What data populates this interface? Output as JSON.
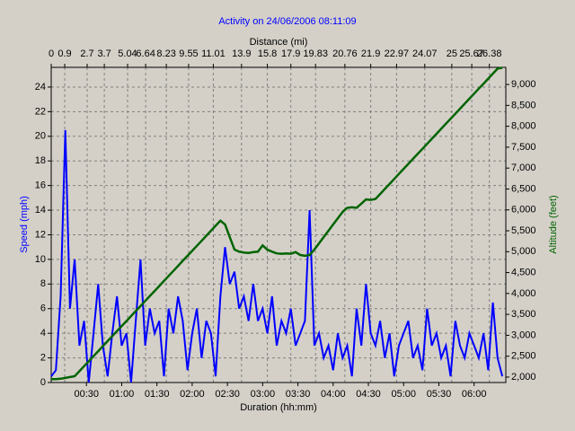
{
  "chart_data": {
    "type": "line",
    "title": "Activity on 24/06/2006 08:11:09",
    "xlabel": "Duration (hh:mm)",
    "x2label": "Distance (mi)",
    "ylabel": "Speed (mph)",
    "y2label": "Altitude (feet)",
    "grid": true,
    "xlim": [
      0,
      387
    ],
    "xticks": [
      {
        "value": 30,
        "label": "00:30"
      },
      {
        "value": 60,
        "label": "01:00"
      },
      {
        "value": 90,
        "label": "01:30"
      },
      {
        "value": 120,
        "label": "02:00"
      },
      {
        "value": 150,
        "label": "02:30"
      },
      {
        "value": 180,
        "label": "03:00"
      },
      {
        "value": 210,
        "label": "03:30"
      },
      {
        "value": 240,
        "label": "04:00"
      },
      {
        "value": 270,
        "label": "04:30"
      },
      {
        "value": 300,
        "label": "05:00"
      },
      {
        "value": 330,
        "label": "05:30"
      },
      {
        "value": 360,
        "label": "06:00"
      }
    ],
    "x2ticks": [
      {
        "value": 0,
        "label": "0"
      },
      {
        "value": 11.5,
        "label": "0.9"
      },
      {
        "value": 30.6,
        "label": "2.7"
      },
      {
        "value": 45.2,
        "label": "3.7"
      },
      {
        "value": 65,
        "label": "5.04"
      },
      {
        "value": 80.4,
        "label": "6.64"
      },
      {
        "value": 98,
        "label": "8.23"
      },
      {
        "value": 117,
        "label": "9.55"
      },
      {
        "value": 138,
        "label": "11.01"
      },
      {
        "value": 162,
        "label": "13.9"
      },
      {
        "value": 184,
        "label": "15.8"
      },
      {
        "value": 204,
        "label": "17.9"
      },
      {
        "value": 225,
        "label": "19.83"
      },
      {
        "value": 250,
        "label": "20.76"
      },
      {
        "value": 272,
        "label": "21.9"
      },
      {
        "value": 294,
        "label": "22.97"
      },
      {
        "value": 318,
        "label": "24.07"
      },
      {
        "value": 341,
        "label": "25"
      },
      {
        "value": 358,
        "label": "25.67"
      },
      {
        "value": 373,
        "label": "26.38"
      }
    ],
    "ylim": [
      0,
      25.6
    ],
    "yticks": [
      0,
      2,
      4,
      6,
      8,
      10,
      12,
      14,
      16,
      18,
      20,
      22,
      24
    ],
    "y2lim": [
      1870,
      9410
    ],
    "y2ticks": [
      {
        "value": 2000,
        "label": "2,000"
      },
      {
        "value": 2500,
        "label": "2,500"
      },
      {
        "value": 3000,
        "label": "3,000"
      },
      {
        "value": 3500,
        "label": "3,500"
      },
      {
        "value": 4000,
        "label": "4,000"
      },
      {
        "value": 4500,
        "label": "4,500"
      },
      {
        "value": 5000,
        "label": "5,000"
      },
      {
        "value": 5500,
        "label": "5,500"
      },
      {
        "value": 6000,
        "label": "6,000"
      },
      {
        "value": 6500,
        "label": "6,500"
      },
      {
        "value": 7000,
        "label": "7,000"
      },
      {
        "value": 7500,
        "label": "7,500"
      },
      {
        "value": 8000,
        "label": "8,000"
      },
      {
        "value": 8500,
        "label": "8,500"
      },
      {
        "value": 9000,
        "label": "9,000"
      }
    ],
    "x": [
      0,
      4,
      8,
      12,
      16,
      20,
      24,
      28,
      32,
      36,
      40,
      44,
      48,
      52,
      56,
      60,
      64,
      68,
      72,
      76,
      80,
      84,
      88,
      92,
      96,
      100,
      104,
      108,
      112,
      116,
      120,
      124,
      128,
      132,
      136,
      140,
      144,
      148,
      152,
      156,
      160,
      164,
      168,
      172,
      176,
      180,
      184,
      188,
      192,
      196,
      200,
      204,
      208,
      212,
      216,
      220,
      224,
      228,
      232,
      236,
      240,
      244,
      248,
      252,
      256,
      260,
      264,
      268,
      272,
      276,
      280,
      284,
      288,
      292,
      296,
      300,
      304,
      308,
      312,
      316,
      320,
      324,
      328,
      332,
      336,
      340,
      344,
      348,
      352,
      356,
      360,
      364,
      368,
      372,
      376,
      380,
      384
    ],
    "series": [
      {
        "name": "Speed",
        "color": "#0000ff",
        "axis": "y",
        "values": [
          0.5,
          1,
          7,
          20.5,
          6,
          10,
          3,
          5,
          0,
          4,
          8,
          3,
          0.5,
          4,
          7,
          3,
          4,
          0,
          5,
          10,
          3,
          6,
          4,
          5,
          0.5,
          6,
          4,
          7,
          5,
          1,
          4,
          6,
          2,
          5,
          4,
          0.5,
          7,
          11,
          8,
          9,
          6,
          7,
          5,
          8,
          5,
          6,
          4,
          7,
          3,
          5,
          4,
          6,
          3,
          4,
          5,
          14,
          3,
          4,
          2,
          3,
          1,
          4,
          2,
          3,
          0.5,
          6,
          3,
          8,
          4,
          3,
          5,
          2,
          4,
          0.5,
          3,
          4,
          5,
          2,
          3,
          1,
          6,
          3,
          4,
          2,
          3,
          0.5,
          5,
          3,
          2,
          4,
          3,
          2,
          4,
          1,
          6.5,
          2,
          0.5
        ]
      },
      {
        "name": "Altitude",
        "color": "#006400",
        "axis": "y2",
        "values": [
          1950,
          1950,
          1960,
          1980,
          2000,
          2020,
          2140,
          2260,
          2380,
          2500,
          2620,
          2740,
          2860,
          2980,
          3100,
          3220,
          3340,
          3460,
          3580,
          3700,
          3820,
          3940,
          4060,
          4180,
          4300,
          4420,
          4540,
          4660,
          4780,
          4900,
          5020,
          5140,
          5260,
          5380,
          5500,
          5620,
          5740,
          5650,
          5350,
          5050,
          5000,
          4980,
          4970,
          4990,
          5000,
          5150,
          5050,
          5000,
          4960,
          4950,
          4960,
          4950,
          4990,
          4920,
          4900,
          4920,
          5050,
          5200,
          5350,
          5500,
          5650,
          5800,
          5950,
          6050,
          6060,
          6050,
          6150,
          6250,
          6240,
          6260,
          6380,
          6500,
          6620,
          6740,
          6860,
          6980,
          7100,
          7220,
          7340,
          7460,
          7580,
          7700,
          7820,
          7940,
          8060,
          8180,
          8300,
          8420,
          8540,
          8660,
          8780,
          8900,
          9020,
          9140,
          9260,
          9380,
          9400
        ]
      }
    ]
  }
}
